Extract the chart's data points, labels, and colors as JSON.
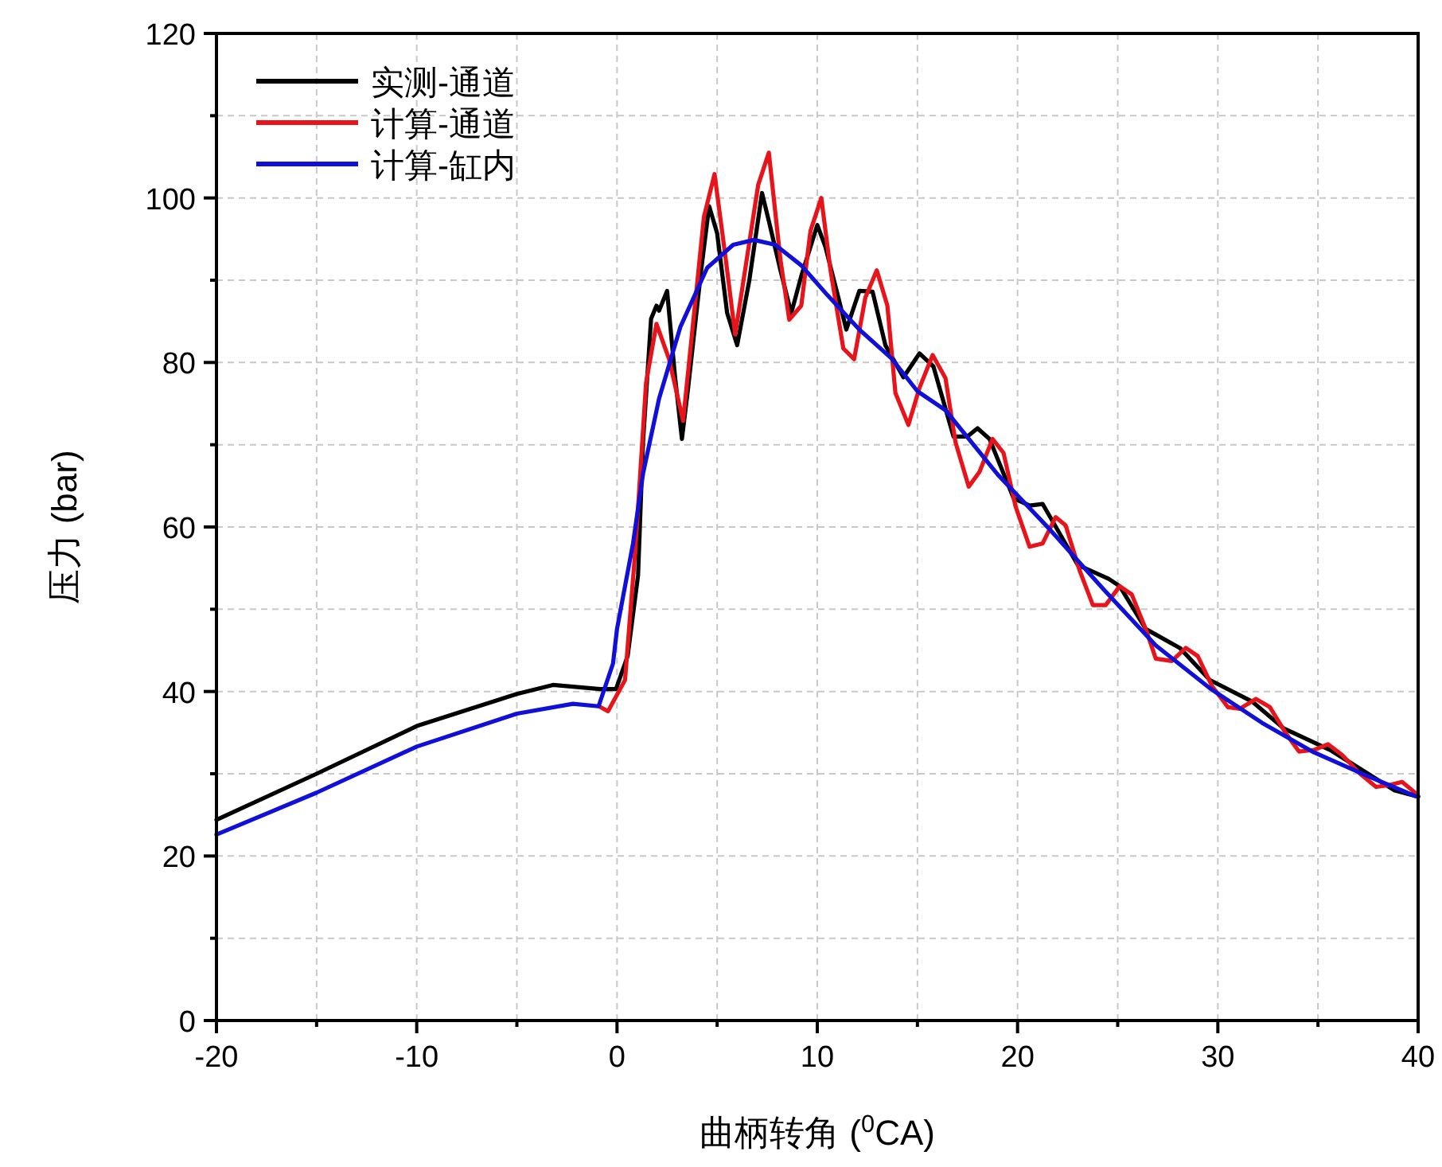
{
  "chart_data": {
    "type": "line",
    "xlabel": "曲柄转角 ($^{0}$CA)",
    "ylabel": "压力 (bar)",
    "xlim": [
      -20,
      40
    ],
    "ylim": [
      0,
      120
    ],
    "xticks": [
      -20,
      {
        "value": -15,
        "label": null
      },
      -10,
      {
        "value": -5,
        "label": null
      },
      0,
      {
        "value": 5,
        "label": null
      },
      10,
      {
        "value": 15,
        "label": null
      },
      20,
      {
        "value": 25,
        "label": null
      },
      30,
      {
        "value": 35,
        "label": null
      },
      40
    ],
    "yticks": [
      0,
      {
        "value": 10,
        "label": null
      },
      20,
      {
        "value": 30,
        "label": null
      },
      40,
      {
        "value": 50,
        "label": null
      },
      60,
      {
        "value": 70,
        "label": null
      },
      80,
      {
        "value": 90,
        "label": null
      },
      100,
      {
        "value": 110,
        "label": null
      },
      120
    ],
    "grid": true,
    "legend": "top left",
    "marker": "none",
    "line_style": "solid",
    "series": [
      {
        "name": "实测-通道",
        "color": "#000000",
        "x": [
          -20,
          -15,
          -10,
          -5,
          -3.2,
          -0.85,
          -0.05,
          0.53,
          1.05,
          1.3,
          1.7,
          1.97,
          2.1,
          2.5,
          2.9,
          3.24,
          3.55,
          4.2,
          4.6,
          5.0,
          5.5,
          6.0,
          6.6,
          7.24,
          7.6,
          8.16,
          8.7,
          9.2,
          10.0,
          10.4,
          11.05,
          11.45,
          12.1,
          12.76,
          13.4,
          14.3,
          15.1,
          15.8,
          16.8,
          17.5,
          18.0,
          18.6,
          19.8,
          20.6,
          21.25,
          23.0,
          24.55,
          25.1,
          26.4,
          28.1,
          29.6,
          31.7,
          33.3,
          35.6,
          37.5,
          38.8,
          40
        ],
        "values": [
          24.4,
          30.0,
          35.8,
          39.7,
          40.8,
          40.3,
          40.3,
          44.3,
          54.1,
          70.4,
          85.3,
          86.9,
          86.3,
          88.7,
          78.2,
          70.7,
          76.9,
          91.2,
          99.0,
          95.7,
          86.0,
          82.1,
          89.9,
          100.6,
          97.0,
          91.2,
          86.0,
          90.5,
          96.7,
          94.1,
          87.9,
          84.0,
          88.7,
          88.6,
          82.1,
          78.2,
          81.1,
          79.5,
          71.0,
          71.0,
          72.0,
          70.7,
          63.5,
          62.6,
          62.8,
          55.4,
          53.7,
          52.8,
          47.6,
          45.3,
          41.4,
          38.8,
          35.5,
          32.9,
          30.0,
          28.0,
          27.2
        ]
      },
      {
        "name": "计算-通道",
        "color": "#e8141b",
        "x": [
          -0.9,
          -0.45,
          0.4,
          0.92,
          1.45,
          1.97,
          2.6,
          3.3,
          4.34,
          4.87,
          5.4,
          5.9,
          7.05,
          7.58,
          8.16,
          8.6,
          9.2,
          9.66,
          10.2,
          10.66,
          11.3,
          11.84,
          12.4,
          12.97,
          13.5,
          13.9,
          14.55,
          15.1,
          15.76,
          16.4,
          16.9,
          17.56,
          18.1,
          18.75,
          19.3,
          19.9,
          20.6,
          21.25,
          21.9,
          22.4,
          23.1,
          23.76,
          24.4,
          25.1,
          25.7,
          26.4,
          26.9,
          27.7,
          28.4,
          29.0,
          29.7,
          30.5,
          31.1,
          31.9,
          32.6,
          33.4,
          34.05,
          34.8,
          35.5,
          36.2,
          37.1,
          37.9,
          38.5,
          39.2,
          39.85,
          40
        ],
        "values": [
          38.2,
          37.6,
          41.4,
          57.4,
          77.5,
          84.7,
          80.4,
          72.9,
          97.7,
          102.9,
          93.1,
          83.4,
          101.6,
          105.5,
          92.5,
          85.2,
          86.9,
          96.0,
          100.0,
          91.2,
          81.7,
          80.4,
          87.9,
          91.2,
          86.9,
          76.3,
          72.4,
          76.9,
          80.9,
          78.1,
          70.3,
          64.9,
          66.7,
          70.7,
          69.0,
          62.5,
          57.6,
          58.0,
          61.2,
          60.2,
          54.7,
          50.5,
          50.5,
          52.8,
          51.8,
          47.6,
          44.0,
          43.7,
          45.3,
          44.3,
          40.7,
          38.1,
          37.9,
          39.1,
          38.1,
          34.9,
          32.7,
          32.9,
          33.6,
          32.3,
          30.0,
          28.4,
          28.6,
          29.0,
          27.7,
          27.3
        ]
      },
      {
        "name": "计算-缸内",
        "color": "#1010d8",
        "x": [
          -20,
          -15,
          -10,
          -5,
          -2.2,
          -0.92,
          -0.2,
          0.0,
          0.8,
          1.3,
          2.1,
          3.16,
          4.5,
          5.8,
          6.84,
          7.9,
          9.2,
          10.5,
          12.1,
          13.7,
          15.0,
          16.4,
          19.0,
          21.65,
          24.3,
          26.9,
          29.6,
          32.2,
          34.8,
          37.5,
          39.85,
          40
        ],
        "values": [
          22.6,
          27.7,
          33.3,
          37.3,
          38.5,
          38.2,
          43.4,
          47.6,
          58.0,
          66.5,
          75.6,
          84.3,
          91.5,
          94.3,
          94.9,
          94.3,
          91.8,
          88.2,
          84.0,
          80.5,
          76.5,
          74.2,
          66.4,
          59.6,
          52.4,
          45.6,
          40.4,
          36.2,
          32.6,
          29.7,
          27.3,
          27.2
        ]
      }
    ]
  }
}
